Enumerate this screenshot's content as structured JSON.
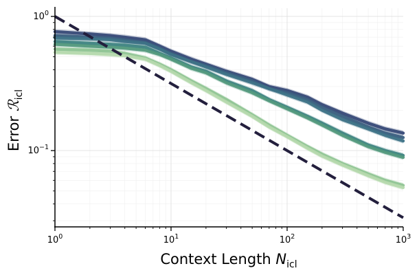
{
  "chart_data": {
    "type": "line",
    "xlabel": "Context Length N_icl",
    "ylabel": "Error ℛ_icl",
    "xlabel_main": "Context Length ",
    "xlabel_var": "N",
    "xlabel_sub": "icl",
    "ylabel_main": "Error ",
    "ylabel_var": "ℛ",
    "ylabel_sub": "icl",
    "x_scale": "log",
    "y_scale": "log",
    "xlim": [
      1,
      1000
    ],
    "ylim": [
      0.027,
      1.15
    ],
    "grid": true,
    "legend": "none",
    "x_ticks": [
      {
        "value": 1,
        "base": "10",
        "exp": "0"
      },
      {
        "value": 10,
        "base": "10",
        "exp": "1"
      },
      {
        "value": 100,
        "base": "10",
        "exp": "2"
      },
      {
        "value": 1000,
        "base": "10",
        "exp": "3"
      }
    ],
    "y_ticks": [
      {
        "value": 1,
        "base": "10",
        "exp": "0"
      },
      {
        "value": 0.1,
        "base": "10",
        "exp": "−1"
      }
    ],
    "x": [
      1,
      2,
      3,
      4,
      6,
      8,
      10,
      15,
      20,
      30,
      50,
      70,
      100,
      150,
      200,
      300,
      500,
      700,
      1000
    ],
    "series": [
      {
        "color": "#384a78",
        "values": [
          0.77,
          0.74,
          0.72,
          0.7,
          0.67,
          0.6,
          0.55,
          0.48,
          0.44,
          0.39,
          0.34,
          0.3,
          0.28,
          0.25,
          0.22,
          0.19,
          0.16,
          0.145,
          0.135
        ]
      },
      {
        "color": "#3b5f80",
        "values": [
          0.72,
          0.7,
          0.69,
          0.67,
          0.64,
          0.58,
          0.53,
          0.46,
          0.43,
          0.38,
          0.33,
          0.29,
          0.27,
          0.24,
          0.21,
          0.18,
          0.15,
          0.135,
          0.125
        ]
      },
      {
        "color": "#3d7286",
        "values": [
          0.69,
          0.68,
          0.67,
          0.65,
          0.63,
          0.57,
          0.52,
          0.46,
          0.42,
          0.37,
          0.32,
          0.29,
          0.26,
          0.23,
          0.2,
          0.17,
          0.145,
          0.13,
          0.118
        ]
      },
      {
        "color": "#3f8482",
        "values": [
          0.65,
          0.63,
          0.62,
          0.61,
          0.59,
          0.53,
          0.49,
          0.42,
          0.39,
          0.33,
          0.28,
          0.24,
          0.21,
          0.18,
          0.16,
          0.135,
          0.11,
          0.1,
          0.092
        ]
      },
      {
        "color": "#53997d",
        "values": [
          0.62,
          0.6,
          0.59,
          0.58,
          0.56,
          0.52,
          0.48,
          0.41,
          0.38,
          0.32,
          0.27,
          0.235,
          0.205,
          0.175,
          0.155,
          0.13,
          0.107,
          0.097,
          0.089
        ]
      },
      {
        "color": "#8fc493",
        "values": [
          0.57,
          0.56,
          0.55,
          0.53,
          0.49,
          0.44,
          0.4,
          0.33,
          0.29,
          0.24,
          0.185,
          0.155,
          0.13,
          0.107,
          0.094,
          0.08,
          0.067,
          0.06,
          0.055
        ]
      },
      {
        "color": "#b5d9ad",
        "values": [
          0.54,
          0.53,
          0.52,
          0.51,
          0.48,
          0.43,
          0.39,
          0.32,
          0.28,
          0.23,
          0.18,
          0.15,
          0.127,
          0.104,
          0.091,
          0.078,
          0.065,
          0.058,
          0.053
        ]
      }
    ],
    "reference_line": {
      "style": "dashed",
      "color": "#231f3d",
      "x": [
        1,
        1000
      ],
      "values": [
        1.0,
        0.0316
      ]
    }
  }
}
